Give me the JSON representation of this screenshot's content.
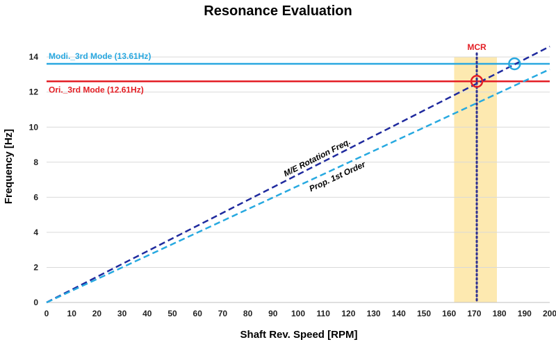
{
  "chart_data": {
    "type": "line",
    "title": "Resonance Evaluation",
    "xlabel": "Shaft Rev. Speed [RPM]",
    "ylabel": "Frequency [Hz]",
    "xlim": [
      0,
      200
    ],
    "ylim": [
      0,
      14.6
    ],
    "xticks": [
      0,
      10,
      20,
      30,
      40,
      50,
      60,
      70,
      80,
      90,
      100,
      110,
      120,
      130,
      140,
      150,
      160,
      170,
      180,
      190,
      200
    ],
    "yticks": [
      0,
      2,
      4,
      6,
      8,
      10,
      12,
      14
    ],
    "grid": "horizontal",
    "series": [
      {
        "name": "M/E Rotation Freq.",
        "x": [
          0,
          200
        ],
        "y": [
          0,
          14.6
        ],
        "style": "dashed",
        "color": "#1f2a9e"
      },
      {
        "name": "Prop. 1st Order",
        "x": [
          0,
          200
        ],
        "y": [
          0,
          13.3
        ],
        "style": "dashed",
        "color": "#27a9e0"
      }
    ],
    "hlines": [
      {
        "name": "Modi._3rd Mode (13.61Hz)",
        "y": 13.61,
        "color": "#29a8e0"
      },
      {
        "name": "Ori._3rd Mode (12.61Hz)",
        "y": 12.61,
        "color": "#e31e24"
      }
    ],
    "band": {
      "x": [
        162,
        179
      ],
      "color": "#fde9b0"
    },
    "mcr": {
      "label": "MCR",
      "x": 171,
      "color": "#e31e24",
      "line_color": "#2e3192"
    },
    "markers": [
      {
        "x": 171,
        "y": 12.61,
        "color": "#e31e24"
      },
      {
        "x": 186,
        "y": 13.61,
        "color": "#29a8e0"
      }
    ]
  }
}
